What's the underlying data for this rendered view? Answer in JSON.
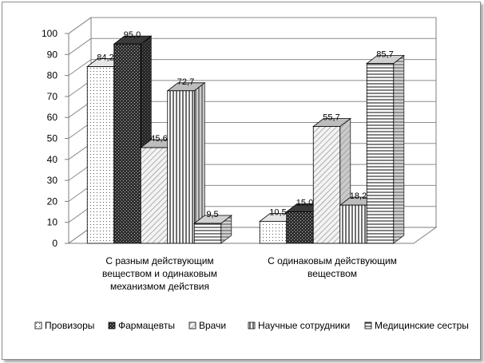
{
  "chart_data": {
    "type": "bar",
    "title": "",
    "xlabel": "",
    "ylabel": "",
    "ylim": [
      0,
      100
    ],
    "yticks": [
      0,
      10,
      20,
      30,
      40,
      50,
      60,
      70,
      80,
      90,
      100
    ],
    "grid": true,
    "legend_position": "bottom",
    "categories": [
      [
        "С разным действующим",
        "веществом и одинаковым",
        "механизмом действия"
      ],
      [
        "С одинаковым действующим",
        "веществом"
      ]
    ],
    "series": [
      {
        "name": "Провизоры",
        "values": [
          84.2,
          10.5
        ],
        "labels": [
          "84,2",
          "10,5"
        ],
        "pattern": "dots"
      },
      {
        "name": "Фармацевты",
        "values": [
          95.0,
          15.0
        ],
        "labels": [
          "95,0",
          "15,0"
        ],
        "pattern": "dark"
      },
      {
        "name": "Врачи",
        "values": [
          45.6,
          55.7
        ],
        "labels": [
          "45,6",
          "55,7"
        ],
        "pattern": "diag"
      },
      {
        "name": "Научные сотрудники",
        "values": [
          72.7,
          18.2
        ],
        "labels": [
          "72,7",
          "18,2"
        ],
        "pattern": "vert"
      },
      {
        "name": "Медицинские сестры",
        "values": [
          9.5,
          85.7
        ],
        "labels": [
          "9,5",
          "85,7"
        ],
        "pattern": "horiz"
      }
    ]
  }
}
